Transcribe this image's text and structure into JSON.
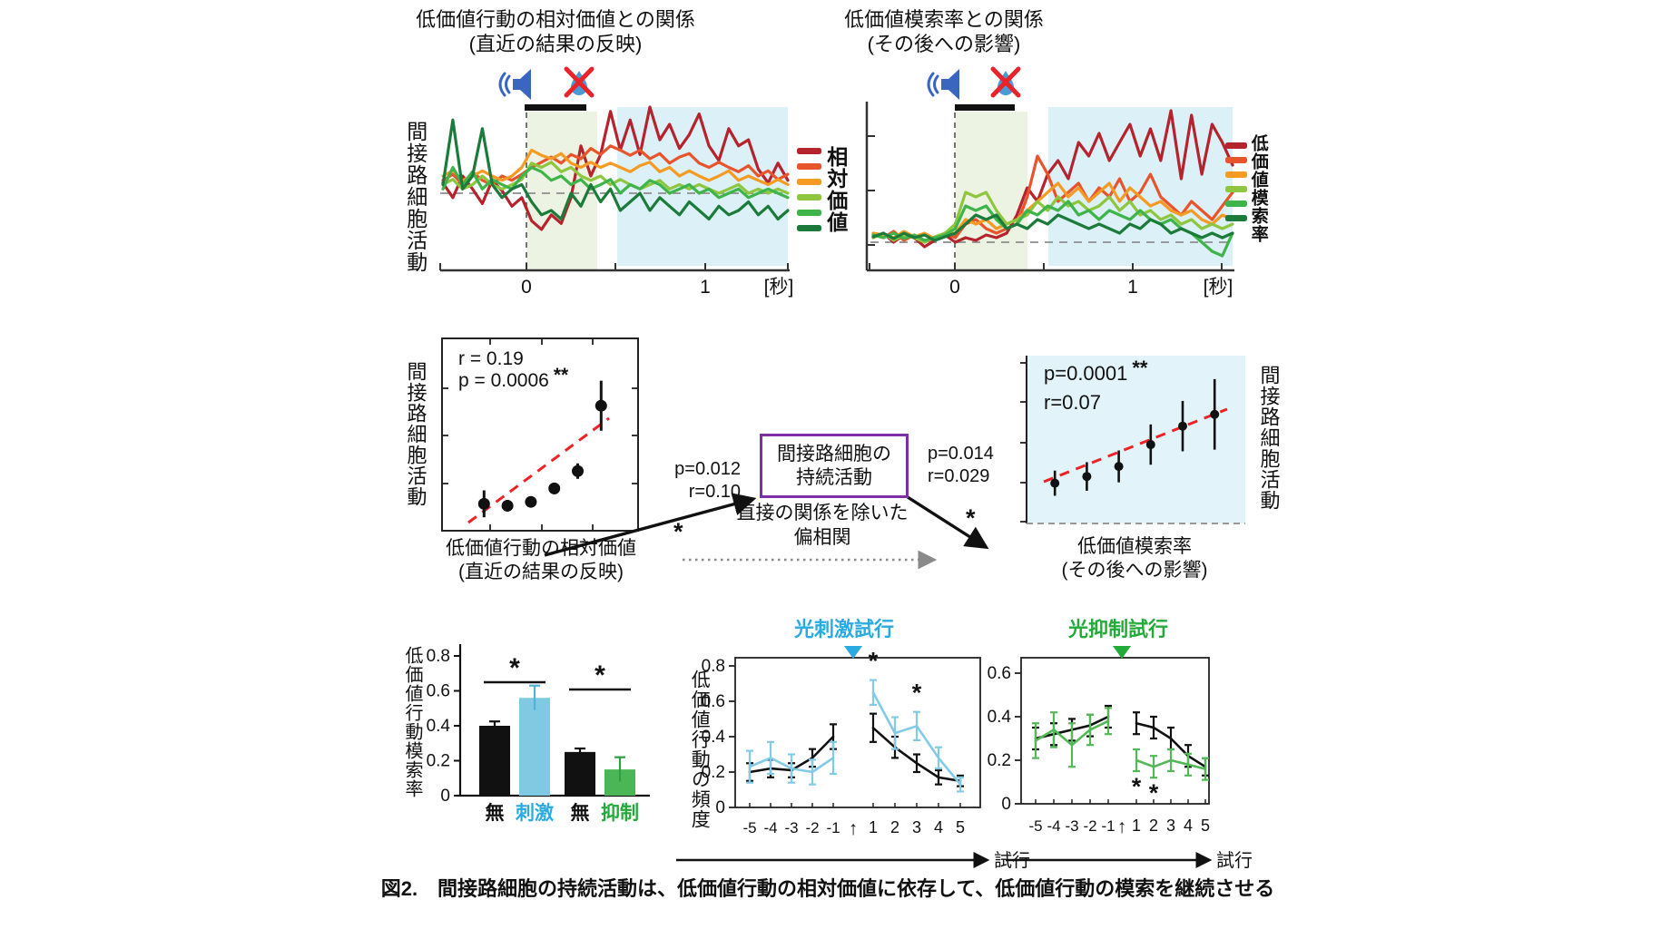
{
  "caption": {
    "text": "図2.　間接路細胞の持続活動は、低価値行動の相対価値に依存して、低価値行動の模索を継続させる"
  },
  "colors": {
    "value_gradient": [
      "#b5232d",
      "#e8542c",
      "#f59a23",
      "#8ec63f",
      "#3eb44a",
      "#1c7b3a"
    ],
    "stim_cyan": "#29abe2",
    "stim_line_cyan": "#82cbe8",
    "inhib_green": "#22ab39",
    "inhib_line_green": "#53b957",
    "trend_red": "#ed2224",
    "box_purple": "#7c2fa6",
    "shade_green": "#edf3e2",
    "shade_blue": "#dcf0f8",
    "scatter_bg": "#e3f3fa",
    "speaker_blue": "#3b66c0",
    "drop_blue": "#4b9ad8",
    "cross_red": "#e8232a",
    "baseline_gray": "#999999"
  },
  "flow": {
    "box_line1": "間接路細胞の",
    "box_line2": "持続活動",
    "left_p": "p=0.012",
    "left_r": "r=0.10",
    "left_star": "*",
    "right_p": "p=0.014",
    "right_r": "r=0.029",
    "right_star": "*",
    "note_line1": "直接の関係を除いた",
    "note_line2": "偏相関"
  },
  "chart_data": [
    {
      "id": "psth_relative_value",
      "type": "line",
      "title_line1": "低価値行動の相対価値との関係",
      "title_line2": "(直近の結果の反映)",
      "ylabel": "間接路細胞活動",
      "legend_label": "相対価値",
      "legend_position": "right",
      "x_ticks": [
        "0",
        "1"
      ],
      "x_unit": "[秒]",
      "x_range_s": [
        -0.5,
        1.5
      ],
      "events": {
        "cue_icon": "speaker-icon",
        "no_reward_icon": "muted-reward-icon",
        "cue_bar_s": [
          0,
          0.33
        ],
        "early_window_s": [
          0,
          0.4
        ],
        "late_window_s": [
          0.5,
          1.5
        ]
      },
      "series": [
        {
          "name": "relative_value_rank1_high",
          "color": "#b5232d",
          "values": [
            0.12,
            -0.05,
            0.2,
            0.05,
            -0.12,
            0.15,
            0.03,
            -0.15,
            -0.05,
            -0.32,
            -0.42,
            -0.25,
            -0.35,
            -0.05,
            0.55,
            0.2,
            0.45,
            0.95,
            0.5,
            0.85,
            0.45,
            1.0,
            0.62,
            0.8,
            0.52,
            0.68,
            0.92,
            0.55,
            0.38,
            0.75,
            0.55,
            0.62,
            0.28,
            0.12,
            0.35,
            0.15
          ]
        },
        {
          "name": "relative_value_rank2",
          "color": "#e8542c",
          "values": [
            0.15,
            0.22,
            0.1,
            0.25,
            0.15,
            0.1,
            0.2,
            0.15,
            0.22,
            0.3,
            0.36,
            0.42,
            0.35,
            0.45,
            0.4,
            0.52,
            0.45,
            0.55,
            0.5,
            0.44,
            0.5,
            0.4,
            0.46,
            0.35,
            0.42,
            0.46,
            0.35,
            0.3,
            0.36,
            0.3,
            0.25,
            0.32,
            0.2,
            0.26,
            0.16,
            0.22
          ]
        },
        {
          "name": "relative_value_rank3",
          "color": "#f59a23",
          "values": [
            0.2,
            0.26,
            0.15,
            0.2,
            0.26,
            0.2,
            0.15,
            0.2,
            0.3,
            0.5,
            0.44,
            0.4,
            0.46,
            0.35,
            0.3,
            0.36,
            0.3,
            0.35,
            0.3,
            0.25,
            0.32,
            0.36,
            0.25,
            0.3,
            0.2,
            0.26,
            0.2,
            0.15,
            0.2,
            0.26,
            0.15,
            0.2,
            0.15,
            0.1,
            0.16,
            0.1
          ]
        },
        {
          "name": "relative_value_rank4",
          "color": "#8ec63f",
          "values": [
            0.1,
            0.16,
            0.05,
            0.1,
            0.2,
            0.1,
            0.05,
            0.1,
            0.16,
            0.35,
            0.3,
            0.36,
            0.25,
            0.3,
            0.2,
            0.15,
            0.2,
            0.1,
            0.16,
            0.1,
            0.05,
            0.1,
            0.15,
            0.05,
            0.1,
            0.05,
            0.1,
            0.05,
            0,
            0.05,
            0.1,
            0,
            0.05,
            0,
            0.05,
            0
          ]
        },
        {
          "name": "relative_value_rank5",
          "color": "#3eb44a",
          "values": [
            0.05,
            0.3,
            0.1,
            0.25,
            0.05,
            0.16,
            0.1,
            0.05,
            0.2,
            0.3,
            0.25,
            0.15,
            0.2,
            0.1,
            0.16,
            0.05,
            0.1,
            0.16,
            0,
            0.1,
            0.05,
            0.15,
            0.1,
            0,
            0.05,
            0.1,
            0,
            0.05,
            -0.05,
            0,
            0.05,
            -0.05,
            0,
            0.05,
            0,
            -0.05
          ]
        },
        {
          "name": "relative_value_rank6_low",
          "color": "#1c7b3a",
          "values": [
            0.1,
            0.85,
            0.05,
            0.2,
            0.75,
            0.1,
            -0.05,
            0.05,
            0.1,
            -0.1,
            -0.25,
            -0.2,
            -0.3,
            0,
            -0.15,
            0.1,
            -0.1,
            0.05,
            -0.2,
            -0.1,
            0,
            -0.2,
            -0.05,
            -0.15,
            -0.25,
            -0.1,
            -0.2,
            -0.3,
            -0.15,
            -0.25,
            -0.2,
            -0.1,
            -0.25,
            -0.15,
            -0.3,
            -0.2
          ]
        }
      ]
    },
    {
      "id": "psth_exploration_rate",
      "type": "line",
      "title_line1": "低価値模索率との関係",
      "title_line2": "(その後への影響)",
      "legend_label": "低価値模索率",
      "legend_position": "right",
      "x_ticks": [
        "0",
        "1"
      ],
      "x_unit": "[秒]",
      "x_range_s": [
        -0.5,
        1.5
      ],
      "events": {
        "cue_icon": "speaker-icon",
        "no_reward_icon": "muted-reward-icon",
        "cue_bar_s": [
          0,
          0.33
        ],
        "early_window_s": [
          0,
          0.4
        ],
        "late_window_s": [
          0.5,
          1.5
        ]
      },
      "series": [
        {
          "name": "exploration_rank1_high",
          "color": "#b5232d",
          "values": [
            0.05,
            0.1,
            0,
            0.08,
            0.05,
            -0.05,
            0.02,
            0.08,
            0,
            0.05,
            0.02,
            0.08,
            0.05,
            0.1,
            0.3,
            0.6,
            0.45,
            0.75,
            0.9,
            0.7,
            1.1,
            0.95,
            1.2,
            0.9,
            1.1,
            1.3,
            0.95,
            1.25,
            0.9,
            1.45,
            0.7,
            1.4,
            0.75,
            1.3,
            1.1,
            0.85
          ]
        },
        {
          "name": "exploration_rank2",
          "color": "#e8542c",
          "values": [
            0.08,
            0.05,
            0.12,
            0.02,
            0.08,
            0,
            0.05,
            0.1,
            0.05,
            0.2,
            0.25,
            0.15,
            0.1,
            0.15,
            0.2,
            0.5,
            0.95,
            0.75,
            0.45,
            0.55,
            0.65,
            0.45,
            0.6,
            0.5,
            0.7,
            0.45,
            0.55,
            0.75,
            0.5,
            0.4,
            0.3,
            0.45,
            0.35,
            0.25,
            0.4,
            0.55
          ]
        },
        {
          "name": "exploration_rank3",
          "color": "#f59a23",
          "values": [
            0.1,
            0.08,
            0.05,
            0.12,
            0.06,
            0.1,
            0.04,
            0.08,
            0.1,
            0.25,
            0.2,
            0.25,
            0.15,
            0.2,
            0.25,
            0.35,
            0.45,
            0.55,
            0.65,
            0.5,
            0.6,
            0.45,
            0.55,
            0.65,
            0.45,
            0.6,
            0.5,
            0.4,
            0.45,
            0.35,
            0.3,
            0.35,
            0.25,
            0.2,
            0.3,
            0.25
          ]
        },
        {
          "name": "exploration_rank4",
          "color": "#8ec63f",
          "values": [
            0.05,
            0.1,
            0.02,
            0.08,
            0.05,
            0,
            0.06,
            0.1,
            0.2,
            0.55,
            0.5,
            0.55,
            0.35,
            0.2,
            0.25,
            0.3,
            0.45,
            0.35,
            0.5,
            0.4,
            0.45,
            0.35,
            0.4,
            0.5,
            0.35,
            0.45,
            0.3,
            0.35,
            0.25,
            0.3,
            0.2,
            0.25,
            0.15,
            0.2,
            0.15,
            0.2
          ]
        },
        {
          "name": "exploration_rank5",
          "color": "#3eb44a",
          "values": [
            0.08,
            0.05,
            0.1,
            0.04,
            0.08,
            0.02,
            0.05,
            0.08,
            0.15,
            0.4,
            0.35,
            0.4,
            0.25,
            0.15,
            0.2,
            0.35,
            0.3,
            0.4,
            0.35,
            0.45,
            0.3,
            0.35,
            0.25,
            0.35,
            0.3,
            0.25,
            0.35,
            0.25,
            0.2,
            0.25,
            0.15,
            0.1,
            0,
            -0.1,
            -0.15,
            0.1
          ]
        },
        {
          "name": "exploration_rank6_low",
          "color": "#1c7b3a",
          "values": [
            0.06,
            0.1,
            0.04,
            0.1,
            0.05,
            0.08,
            0.02,
            0.06,
            0.1,
            0.2,
            0.3,
            0.25,
            0.3,
            0.15,
            0.2,
            0.15,
            0.25,
            0.2,
            0.3,
            0.25,
            0.2,
            0.15,
            0.2,
            0.15,
            0.1,
            0.2,
            0.15,
            0.25,
            0.2,
            0.1,
            0.15,
            0.1,
            0.05,
            0.1,
            0.05,
            0.1
          ]
        }
      ]
    },
    {
      "id": "scatter_relative_value",
      "type": "scatter",
      "stats": {
        "r_text": "r = 0.19",
        "p_text": "p = 0.0006",
        "sig": "**"
      },
      "ylabel": "間接路細胞活動",
      "xlabel_line1": "低価値行動の相対価値",
      "xlabel_line2": "(直近の結果の反映)",
      "points": {
        "x_bin": [
          1,
          2,
          3,
          4,
          5,
          6
        ],
        "y": [
          0.14,
          0.13,
          0.15,
          0.22,
          0.31,
          0.65
        ],
        "err": [
          0.07,
          0.03,
          0.025,
          0.03,
          0.04,
          0.13
        ]
      },
      "trend": {
        "style": "red-dashed",
        "direction": "ascending"
      }
    },
    {
      "id": "scatter_exploration",
      "type": "scatter",
      "stats": {
        "p_text": "p=0.0001",
        "sig": "**",
        "r_text": "r=0.07"
      },
      "ylabel": "間接路細胞活動",
      "xlabel_line1": "低価値模索率",
      "xlabel_line2": "(その後への影響)",
      "points": {
        "x_bin": [
          1,
          2,
          3,
          4,
          5,
          6
        ],
        "y": [
          0.24,
          0.28,
          0.34,
          0.47,
          0.58,
          0.65
        ],
        "err": [
          0.075,
          0.085,
          0.095,
          0.12,
          0.15,
          0.21
        ]
      },
      "trend": {
        "style": "red-dashed",
        "direction": "ascending"
      }
    },
    {
      "id": "bar_exploration_rate",
      "type": "bar",
      "ylabel": "低価値行動模索率",
      "ylim": [
        0,
        0.8
      ],
      "y_ticks": [
        "0",
        "0.2",
        "0.4",
        "0.6",
        "0.8"
      ],
      "categories": [
        "無",
        "刺激",
        "無",
        "抑制"
      ],
      "values": [
        0.4,
        0.56,
        0.25,
        0.15
      ],
      "errors": [
        0.025,
        0.07,
        0.02,
        0.07
      ],
      "bar_colors": [
        "#111111",
        "#7fc9e2",
        "#111111",
        "#4bb656"
      ],
      "err_colors": [
        "#111111",
        "#4fb3da",
        "#111111",
        "#2f9e44"
      ],
      "label_colors": [
        "#111111",
        "#29abe2",
        "#111111",
        "#22ab39"
      ],
      "significance": [
        {
          "pair": [
            0,
            1
          ],
          "label": "*"
        },
        {
          "pair": [
            2,
            3
          ],
          "label": "*"
        }
      ]
    },
    {
      "id": "stim_trials",
      "type": "line",
      "title": "光刺激試行",
      "title_color": "#29abe2",
      "ylabel": "低価値行動の頻度",
      "ylim": [
        0,
        0.8
      ],
      "y_ticks": [
        "0",
        "0.2",
        "0.4",
        "0.6",
        "0.8"
      ],
      "x_pre_labels": [
        "-5",
        "-4",
        "-3",
        "-2",
        "-1"
      ],
      "x_marker": "↑",
      "x_post_labels": [
        "1",
        "2",
        "3",
        "4",
        "5"
      ],
      "x_arrow_label": "試行",
      "series": [
        {
          "name": "control_black",
          "color": "#111111",
          "pre": [
            0.2,
            0.22,
            0.21,
            0.28,
            0.4
          ],
          "pre_err": [
            0.05,
            0.05,
            0.04,
            0.05,
            0.07
          ],
          "post": [
            0.45,
            0.34,
            0.25,
            0.17,
            0.15
          ],
          "post_err": [
            0.08,
            0.06,
            0.05,
            0.04,
            0.03
          ]
        },
        {
          "name": "photostim_cyan",
          "color": "#82cbe8",
          "pre": [
            0.23,
            0.28,
            0.22,
            0.2,
            0.28
          ],
          "pre_err": [
            0.09,
            0.09,
            0.08,
            0.07,
            0.09
          ],
          "post": [
            0.65,
            0.42,
            0.46,
            0.28,
            0.13
          ],
          "post_err": [
            0.07,
            0.09,
            0.08,
            0.06,
            0.04
          ]
        }
      ],
      "annotations": [
        {
          "text": "*",
          "post_index": 0,
          "placement": "above"
        },
        {
          "text": "*",
          "post_index": 2,
          "placement": "above"
        }
      ]
    },
    {
      "id": "inhib_trials",
      "type": "line",
      "title": "光抑制試行",
      "title_color": "#22ab39",
      "ylim": [
        0,
        0.7
      ],
      "y_ticks": [
        "0",
        "0.2",
        "0.4",
        "0.6"
      ],
      "x_pre_labels": [
        "-5",
        "-4",
        "-3",
        "-2",
        "-1"
      ],
      "x_marker": "↑",
      "x_post_labels": [
        "1",
        "2",
        "3",
        "4",
        "5"
      ],
      "x_arrow_label": "試行",
      "series": [
        {
          "name": "control_black",
          "color": "#111111",
          "pre": [
            0.3,
            0.32,
            0.34,
            0.36,
            0.4
          ],
          "pre_err": [
            0.05,
            0.05,
            0.05,
            0.05,
            0.05
          ],
          "post": [
            0.37,
            0.35,
            0.3,
            0.22,
            0.17
          ],
          "post_err": [
            0.05,
            0.05,
            0.05,
            0.05,
            0.04
          ]
        },
        {
          "name": "photoinhib_green",
          "color": "#53b957",
          "pre": [
            0.29,
            0.34,
            0.27,
            0.34,
            0.38
          ],
          "pre_err": [
            0.08,
            0.08,
            0.1,
            0.07,
            0.06
          ],
          "post": [
            0.2,
            0.17,
            0.2,
            0.18,
            0.16
          ],
          "post_err": [
            0.05,
            0.05,
            0.05,
            0.05,
            0.05
          ]
        }
      ],
      "annotations": [
        {
          "text": "*",
          "post_index": 0,
          "placement": "below"
        },
        {
          "text": "*",
          "post_index": 1,
          "placement": "below"
        }
      ]
    }
  ]
}
